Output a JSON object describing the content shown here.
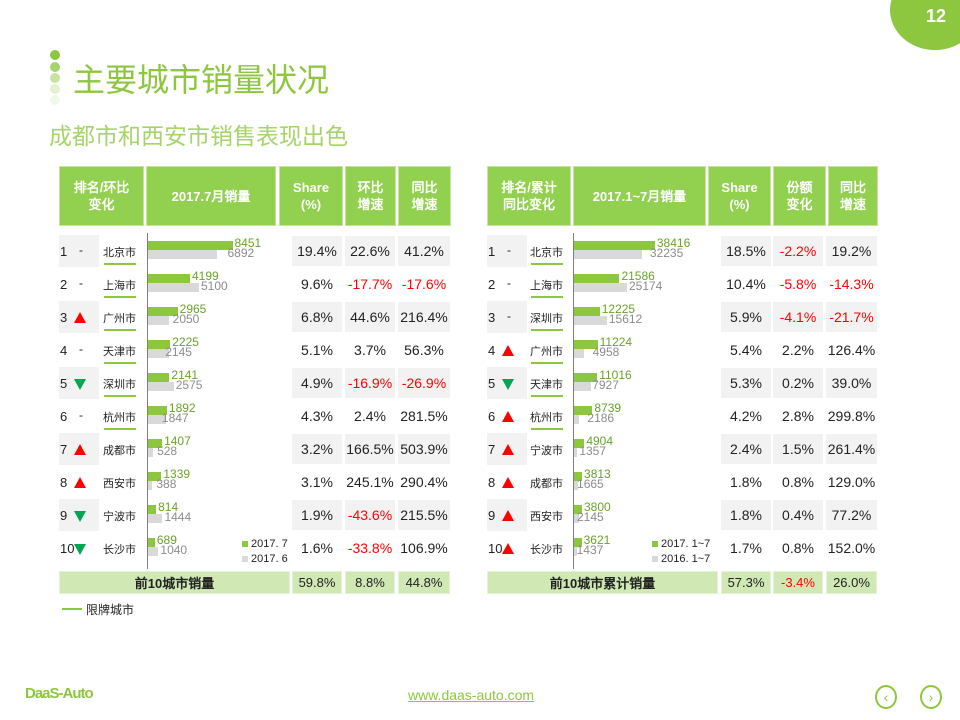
{
  "page_number": "12",
  "title": "主要城市销量状况",
  "subtitle": "成都市和西安市销售表现出色",
  "colors": {
    "accent": "#8dc63f",
    "header": "#92d050",
    "up": "#ff0000",
    "down": "#00a650",
    "prev_bar": "#d9d9d9"
  },
  "left_table": {
    "headers": [
      "排名/环比\n变化",
      "2017.7月销量",
      "Share\n(%)",
      "环比\n增速",
      "同比\n增速"
    ],
    "legend": [
      "2017. 7",
      "2017. 6"
    ],
    "rows": [
      {
        "rank": "1",
        "change": "same",
        "city": "北京市",
        "limited": true,
        "cur": 8451,
        "prev": 6892,
        "share": "19.4%",
        "c1": "22.6%",
        "c2": "41.2%"
      },
      {
        "rank": "2",
        "change": "same",
        "city": "上海市",
        "limited": true,
        "cur": 4199,
        "prev": 5100,
        "share": "9.6%",
        "c1": "-17.7%",
        "c2": "-17.6%"
      },
      {
        "rank": "3",
        "change": "up",
        "city": "广州市",
        "limited": true,
        "cur": 2965,
        "prev": 2050,
        "share": "6.8%",
        "c1": "44.6%",
        "c2": "216.4%"
      },
      {
        "rank": "4",
        "change": "same",
        "city": "天津市",
        "limited": true,
        "cur": 2225,
        "prev": 2145,
        "share": "5.1%",
        "c1": "3.7%",
        "c2": "56.3%"
      },
      {
        "rank": "5",
        "change": "down",
        "city": "深圳市",
        "limited": true,
        "cur": 2141,
        "prev": 2575,
        "share": "4.9%",
        "c1": "-16.9%",
        "c2": "-26.9%"
      },
      {
        "rank": "6",
        "change": "same",
        "city": "杭州市",
        "limited": true,
        "cur": 1892,
        "prev": 1847,
        "share": "4.3%",
        "c1": "2.4%",
        "c2": "281.5%"
      },
      {
        "rank": "7",
        "change": "up",
        "city": "成都市",
        "limited": false,
        "cur": 1407,
        "prev": 528,
        "share": "3.2%",
        "c1": "166.5%",
        "c2": "503.9%"
      },
      {
        "rank": "8",
        "change": "up",
        "city": "西安市",
        "limited": false,
        "cur": 1339,
        "prev": 388,
        "share": "3.1%",
        "c1": "245.1%",
        "c2": "290.4%"
      },
      {
        "rank": "9",
        "change": "down",
        "city": "宁波市",
        "limited": false,
        "cur": 814,
        "prev": 1444,
        "share": "1.9%",
        "c1": "-43.6%",
        "c2": "215.5%"
      },
      {
        "rank": "10",
        "change": "down",
        "city": "长沙市",
        "limited": false,
        "cur": 689,
        "prev": 1040,
        "share": "1.6%",
        "c1": "-33.8%",
        "c2": "106.9%"
      }
    ],
    "total": {
      "label": "前10城市销量",
      "share": "59.8%",
      "c1": "8.8%",
      "c2": "44.8%"
    }
  },
  "right_table": {
    "headers": [
      "排名/累计\n同比变化",
      "2017.1~7月销量",
      "Share\n(%)",
      "份额\n变化",
      "同比\n增速"
    ],
    "legend": [
      "2017. 1~7",
      "2016. 1~7"
    ],
    "rows": [
      {
        "rank": "1",
        "change": "same",
        "city": "北京市",
        "limited": true,
        "cur": 38416,
        "prev": 32235,
        "share": "18.5%",
        "c1": "-2.2%",
        "c2": "19.2%"
      },
      {
        "rank": "2",
        "change": "same",
        "city": "上海市",
        "limited": true,
        "cur": 21586,
        "prev": 25174,
        "share": "10.4%",
        "c1": "-5.8%",
        "c2": "-14.3%"
      },
      {
        "rank": "3",
        "change": "same",
        "city": "深圳市",
        "limited": true,
        "cur": 12225,
        "prev": 15612,
        "share": "5.9%",
        "c1": "-4.1%",
        "c2": "-21.7%"
      },
      {
        "rank": "4",
        "change": "up",
        "city": "广州市",
        "limited": true,
        "cur": 11224,
        "prev": 4958,
        "share": "5.4%",
        "c1": "2.2%",
        "c2": "126.4%"
      },
      {
        "rank": "5",
        "change": "down",
        "city": "天津市",
        "limited": true,
        "cur": 11016,
        "prev": 7927,
        "share": "5.3%",
        "c1": "0.2%",
        "c2": "39.0%"
      },
      {
        "rank": "6",
        "change": "up",
        "city": "杭州市",
        "limited": true,
        "cur": 8739,
        "prev": 2186,
        "share": "4.2%",
        "c1": "2.8%",
        "c2": "299.8%"
      },
      {
        "rank": "7",
        "change": "up",
        "city": "宁波市",
        "limited": false,
        "cur": 4904,
        "prev": 1357,
        "share": "2.4%",
        "c1": "1.5%",
        "c2": "261.4%"
      },
      {
        "rank": "8",
        "change": "up",
        "city": "成都市",
        "limited": false,
        "cur": 3813,
        "prev": 1665,
        "share": "1.8%",
        "c1": "0.8%",
        "c2": "129.0%"
      },
      {
        "rank": "9",
        "change": "up",
        "city": "西安市",
        "limited": false,
        "cur": 3800,
        "prev": 2145,
        "share": "1.8%",
        "c1": "0.4%",
        "c2": "77.2%"
      },
      {
        "rank": "10",
        "change": "up",
        "city": "长沙市",
        "limited": false,
        "cur": 3621,
        "prev": 1437,
        "share": "1.7%",
        "c1": "0.8%",
        "c2": "152.0%"
      }
    ],
    "total": {
      "label": "前10城市累计销量",
      "share": "57.3%",
      "c1": "-3.4%",
      "c2": "26.0%"
    }
  },
  "limited_legend": "限牌城市",
  "footer": {
    "logo": "DaaS-Auto",
    "url": "www.daas-auto.com",
    "prev": "‹",
    "next": "›"
  }
}
